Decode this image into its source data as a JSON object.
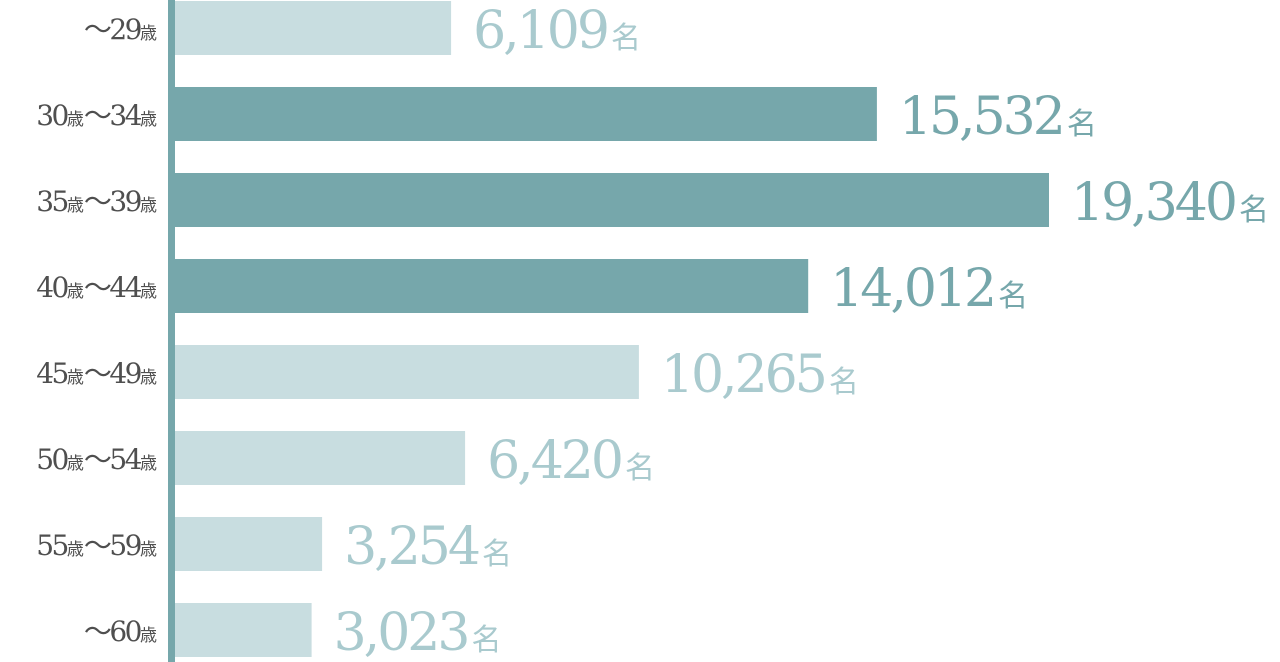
{
  "chart_data": {
    "type": "bar",
    "orientation": "horizontal",
    "categories": [
      "～29歳",
      "30歳～34歳",
      "35歳～39歳",
      "40歳～44歳",
      "45歳～49歳",
      "50歳～54歳",
      "55歳～59歳",
      "～60歳"
    ],
    "values": [
      6109,
      15532,
      19340,
      14012,
      10265,
      6420,
      3254,
      3023
    ],
    "value_labels": [
      "6,109",
      "15,532",
      "19,340",
      "14,012",
      "10,265",
      "6,420",
      "3,254",
      "3,023"
    ],
    "value_unit": "名",
    "highlighted": [
      false,
      true,
      true,
      true,
      false,
      false,
      false,
      false
    ],
    "title": "",
    "xlabel": "",
    "ylabel": "",
    "xlim": [
      0,
      19340
    ],
    "grid": false,
    "legend": "none",
    "colors": {
      "highlight_bar": "#76a7ab",
      "normal_bar": "#c8dde0",
      "axis": "#76a7ab",
      "highlight_text": "#76a7ab",
      "normal_text": "#a9cace",
      "category_text": "#4f4f4f"
    }
  }
}
